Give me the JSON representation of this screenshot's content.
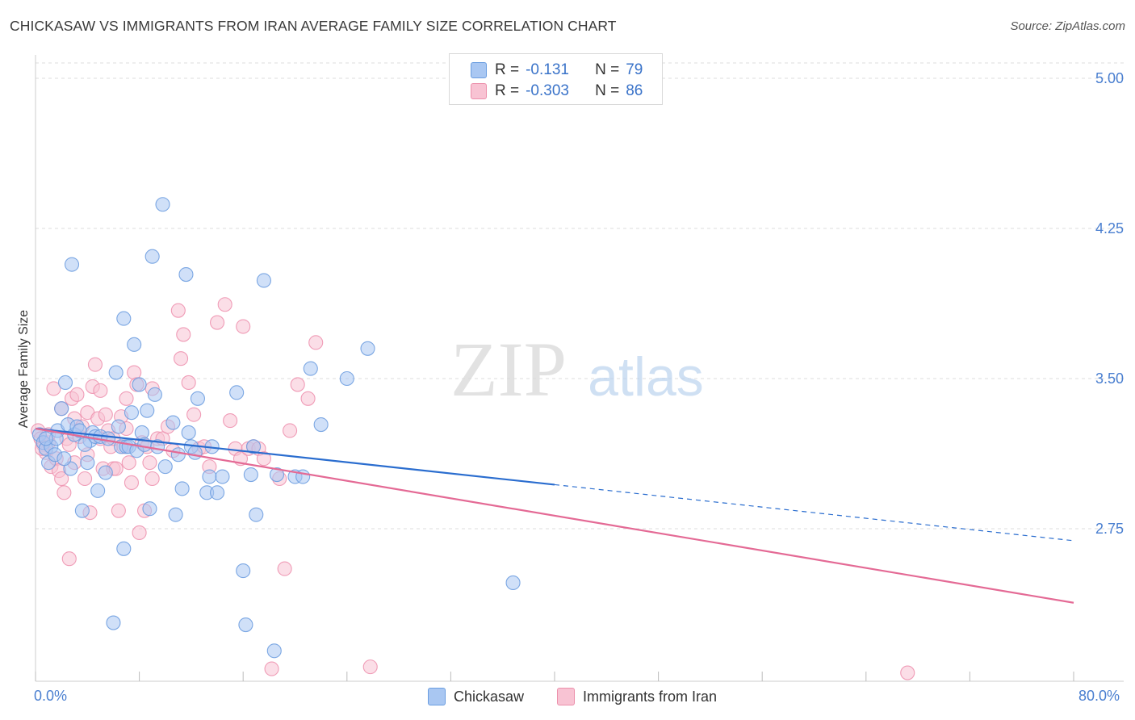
{
  "header": {
    "title": "CHICKASAW VS IMMIGRANTS FROM IRAN AVERAGE FAMILY SIZE CORRELATION CHART",
    "source": "Source: ZipAtlas.com"
  },
  "watermark": {
    "zip": "ZIP",
    "atlas": "atlas"
  },
  "legend_top": [
    {
      "r_label": "R =",
      "r_value": "-0.131",
      "n_label": "N =",
      "n_value": "79",
      "color": "#a9c7f2",
      "border": "#6a9de0"
    },
    {
      "r_label": "R =",
      "r_value": "-0.303",
      "n_label": "N =",
      "n_value": "86",
      "color": "#f8c3d3",
      "border": "#ec8fab"
    }
  ],
  "colors": {
    "blue_fill": "#a9c7f2",
    "blue_stroke": "#6f9fe0",
    "blue_line": "#2a6dcf",
    "pink_fill": "#f8c3d3",
    "pink_stroke": "#ee93b0",
    "pink_line": "#e46a95",
    "grid": "#dddddd",
    "axis_text": "#4a7fd0"
  },
  "chart_data": {
    "type": "scatter",
    "ylabel": "Average Family Size",
    "x_tick_labels": [
      "0.0%",
      "80.0%"
    ],
    "xlim": [
      0,
      80
    ],
    "ylim": [
      2.0,
      5.15
    ],
    "y_ticks": [
      {
        "value": 5.0,
        "label": "5.00"
      },
      {
        "value": 4.25,
        "label": "4.25"
      },
      {
        "value": 3.5,
        "label": "3.50"
      },
      {
        "value": 2.75,
        "label": "2.75"
      }
    ],
    "series": [
      {
        "name": "Chickasaw",
        "color": "#a9c7f2",
        "trend": {
          "x0": 0,
          "y0": 3.25,
          "x1": 40,
          "y1": 2.97,
          "x_dash_end": 80,
          "y_dash_end": 2.69
        },
        "points": [
          [
            0.3,
            3.22
          ],
          [
            0.6,
            3.18
          ],
          [
            0.8,
            3.15
          ],
          [
            1.0,
            3.08
          ],
          [
            1.2,
            3.16
          ],
          [
            1.5,
            3.12
          ],
          [
            1.7,
            3.24
          ],
          [
            2.0,
            3.35
          ],
          [
            2.3,
            3.48
          ],
          [
            2.5,
            3.27
          ],
          [
            2.7,
            3.05
          ],
          [
            3.0,
            3.22
          ],
          [
            3.2,
            3.26
          ],
          [
            3.4,
            3.24
          ],
          [
            3.6,
            2.84
          ],
          [
            4.0,
            3.08
          ],
          [
            4.2,
            3.19
          ],
          [
            4.4,
            3.23
          ],
          [
            4.6,
            3.21
          ],
          [
            4.8,
            2.94
          ],
          [
            5.0,
            3.21
          ],
          [
            5.4,
            3.03
          ],
          [
            6.0,
            2.28
          ],
          [
            6.2,
            3.53
          ],
          [
            6.4,
            3.26
          ],
          [
            6.6,
            3.16
          ],
          [
            6.8,
            2.65
          ],
          [
            7.0,
            3.16
          ],
          [
            7.2,
            3.16
          ],
          [
            7.4,
            3.33
          ],
          [
            7.6,
            3.67
          ],
          [
            7.8,
            3.14
          ],
          [
            8.0,
            3.47
          ],
          [
            8.2,
            3.23
          ],
          [
            8.4,
            3.17
          ],
          [
            8.6,
            3.34
          ],
          [
            8.8,
            2.85
          ],
          [
            9.0,
            4.11
          ],
          [
            9.2,
            3.42
          ],
          [
            9.4,
            3.16
          ],
          [
            9.8,
            4.37
          ],
          [
            10.0,
            3.06
          ],
          [
            10.6,
            3.28
          ],
          [
            10.8,
            2.82
          ],
          [
            11.0,
            3.12
          ],
          [
            11.3,
            2.95
          ],
          [
            11.6,
            4.02
          ],
          [
            11.8,
            3.23
          ],
          [
            12.0,
            3.16
          ],
          [
            12.3,
            3.13
          ],
          [
            12.5,
            3.4
          ],
          [
            13.2,
            2.93
          ],
          [
            13.4,
            3.01
          ],
          [
            13.6,
            3.16
          ],
          [
            14.0,
            2.93
          ],
          [
            14.4,
            3.01
          ],
          [
            15.5,
            3.43
          ],
          [
            16.0,
            2.54
          ],
          [
            16.6,
            3.02
          ],
          [
            16.2,
            2.27
          ],
          [
            16.8,
            3.16
          ],
          [
            17.0,
            2.82
          ],
          [
            17.6,
            3.99
          ],
          [
            18.6,
            3.02
          ],
          [
            18.4,
            2.14
          ],
          [
            20.0,
            3.01
          ],
          [
            20.6,
            3.01
          ],
          [
            21.2,
            3.55
          ],
          [
            22.0,
            3.27
          ],
          [
            24.0,
            3.5
          ],
          [
            25.6,
            3.65
          ],
          [
            36.8,
            2.48
          ],
          [
            2.8,
            4.07
          ],
          [
            6.8,
            3.8
          ],
          [
            1.6,
            3.2
          ],
          [
            3.8,
            3.17
          ],
          [
            5.6,
            3.2
          ],
          [
            0.8,
            3.2
          ],
          [
            2.2,
            3.1
          ]
        ]
      },
      {
        "name": "Immigrants from Iran",
        "color": "#f8c3d3",
        "trend": {
          "x0": 0,
          "y0": 3.25,
          "x1": 80,
          "y1": 2.38
        },
        "points": [
          [
            0.2,
            3.24
          ],
          [
            0.4,
            3.2
          ],
          [
            0.6,
            3.17
          ],
          [
            0.8,
            3.13
          ],
          [
            1.0,
            3.18
          ],
          [
            1.2,
            3.06
          ],
          [
            1.4,
            3.45
          ],
          [
            1.6,
            3.1
          ],
          [
            1.8,
            3.04
          ],
          [
            2.0,
            3.0
          ],
          [
            2.2,
            2.93
          ],
          [
            2.4,
            3.2
          ],
          [
            2.6,
            3.17
          ],
          [
            2.8,
            3.4
          ],
          [
            3.0,
            3.3
          ],
          [
            3.2,
            3.42
          ],
          [
            3.4,
            3.21
          ],
          [
            3.6,
            3.26
          ],
          [
            3.8,
            3.0
          ],
          [
            4.0,
            3.33
          ],
          [
            4.2,
            2.83
          ],
          [
            4.4,
            3.46
          ],
          [
            4.6,
            3.57
          ],
          [
            4.8,
            3.3
          ],
          [
            5.0,
            3.44
          ],
          [
            5.2,
            3.05
          ],
          [
            5.4,
            3.32
          ],
          [
            5.6,
            3.24
          ],
          [
            5.8,
            3.16
          ],
          [
            6.0,
            3.05
          ],
          [
            6.2,
            3.05
          ],
          [
            6.4,
            2.84
          ],
          [
            6.6,
            3.31
          ],
          [
            6.8,
            3.16
          ],
          [
            7.0,
            3.25
          ],
          [
            7.2,
            3.08
          ],
          [
            7.4,
            2.98
          ],
          [
            7.6,
            3.53
          ],
          [
            7.8,
            3.47
          ],
          [
            8.0,
            2.73
          ],
          [
            8.2,
            3.18
          ],
          [
            8.4,
            2.84
          ],
          [
            8.6,
            3.16
          ],
          [
            8.8,
            3.08
          ],
          [
            9.0,
            3.0
          ],
          [
            9.4,
            3.2
          ],
          [
            9.8,
            3.2
          ],
          [
            10.2,
            3.26
          ],
          [
            10.6,
            3.14
          ],
          [
            11.0,
            3.84
          ],
          [
            11.2,
            3.6
          ],
          [
            11.4,
            3.72
          ],
          [
            11.8,
            3.48
          ],
          [
            12.2,
            3.32
          ],
          [
            12.6,
            3.15
          ],
          [
            13.0,
            3.16
          ],
          [
            13.4,
            3.06
          ],
          [
            14.0,
            3.78
          ],
          [
            14.6,
            3.87
          ],
          [
            15.0,
            3.29
          ],
          [
            15.4,
            3.15
          ],
          [
            15.8,
            3.1
          ],
          [
            16.0,
            3.76
          ],
          [
            16.4,
            3.15
          ],
          [
            16.8,
            3.16
          ],
          [
            17.2,
            3.15
          ],
          [
            17.6,
            3.1
          ],
          [
            18.2,
            2.05
          ],
          [
            18.8,
            3.0
          ],
          [
            19.2,
            2.55
          ],
          [
            19.6,
            3.24
          ],
          [
            20.2,
            3.47
          ],
          [
            21.0,
            3.4
          ],
          [
            21.6,
            3.68
          ],
          [
            25.8,
            2.06
          ],
          [
            67.2,
            2.03
          ],
          [
            2.6,
            2.6
          ],
          [
            1.0,
            3.22
          ],
          [
            0.5,
            3.15
          ],
          [
            3.0,
            3.08
          ],
          [
            5.0,
            3.2
          ],
          [
            2.0,
            3.35
          ],
          [
            6.0,
            3.2
          ],
          [
            4.0,
            3.12
          ],
          [
            7.0,
            3.4
          ],
          [
            9.0,
            3.45
          ]
        ]
      }
    ]
  },
  "legend_bottom": [
    {
      "label": "Chickasaw"
    },
    {
      "label": "Immigrants from Iran"
    }
  ]
}
